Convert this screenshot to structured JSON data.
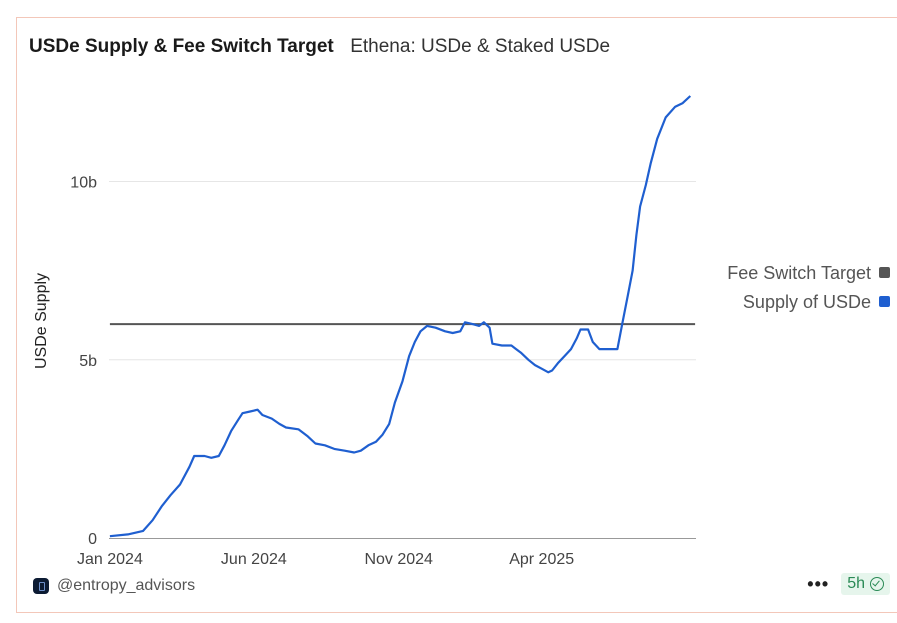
{
  "header": {
    "title": "USDe Supply & Fee Switch Target",
    "subtitle": "Ethena: USDe & Staked USDe"
  },
  "footer": {
    "handle": "@entropy_advisors",
    "more_label": "•••",
    "age_badge": "5h"
  },
  "chart_data": {
    "type": "line",
    "ylabel": "USDe Supply",
    "ylim": [
      0,
      12.4
    ],
    "yticks": [
      {
        "v": 0,
        "label": "0"
      },
      {
        "v": 5,
        "label": "5b"
      },
      {
        "v": 10,
        "label": "10b"
      }
    ],
    "xlim": [
      "2023-12-31",
      "2025-09-11"
    ],
    "xticks": [
      {
        "date": "2024-01-01",
        "label": "Jan 2024"
      },
      {
        "date": "2024-06-01",
        "label": "Jun 2024"
      },
      {
        "date": "2024-11-01",
        "label": "Nov 2024"
      },
      {
        "date": "2025-04-01",
        "label": "Apr 2025"
      }
    ],
    "grid": true,
    "legend_position": "right",
    "legend": [
      {
        "name": "Fee Switch Target",
        "color": "#555555"
      },
      {
        "name": "Supply of USDe",
        "color": "#1f5fd0"
      }
    ],
    "series": [
      {
        "name": "Fee Switch Target",
        "color": "#555555",
        "points": [
          [
            "2024-01-01",
            6.0
          ],
          [
            "2025-09-10",
            6.0
          ]
        ]
      },
      {
        "name": "Supply of USDe",
        "color": "#1f5fd0",
        "points": [
          [
            "2024-01-01",
            0.05
          ],
          [
            "2024-01-20",
            0.1
          ],
          [
            "2024-02-05",
            0.2
          ],
          [
            "2024-02-15",
            0.5
          ],
          [
            "2024-02-25",
            0.9
          ],
          [
            "2024-03-05",
            1.2
          ],
          [
            "2024-03-15",
            1.5
          ],
          [
            "2024-03-25",
            2.0
          ],
          [
            "2024-03-30",
            2.3
          ],
          [
            "2024-04-10",
            2.3
          ],
          [
            "2024-04-17",
            2.25
          ],
          [
            "2024-04-25",
            2.3
          ],
          [
            "2024-05-01",
            2.6
          ],
          [
            "2024-05-08",
            3.0
          ],
          [
            "2024-05-15",
            3.3
          ],
          [
            "2024-05-20",
            3.5
          ],
          [
            "2024-05-28",
            3.55
          ],
          [
            "2024-06-05",
            3.6
          ],
          [
            "2024-06-10",
            3.45
          ],
          [
            "2024-06-20",
            3.35
          ],
          [
            "2024-06-28",
            3.2
          ],
          [
            "2024-07-05",
            3.1
          ],
          [
            "2024-07-18",
            3.05
          ],
          [
            "2024-07-28",
            2.85
          ],
          [
            "2024-08-05",
            2.65
          ],
          [
            "2024-08-15",
            2.6
          ],
          [
            "2024-08-25",
            2.5
          ],
          [
            "2024-09-05",
            2.45
          ],
          [
            "2024-09-15",
            2.4
          ],
          [
            "2024-09-22",
            2.45
          ],
          [
            "2024-09-30",
            2.6
          ],
          [
            "2024-10-08",
            2.7
          ],
          [
            "2024-10-15",
            2.9
          ],
          [
            "2024-10-22",
            3.2
          ],
          [
            "2024-10-28",
            3.8
          ],
          [
            "2024-11-05",
            4.4
          ],
          [
            "2024-11-12",
            5.1
          ],
          [
            "2024-11-18",
            5.5
          ],
          [
            "2024-11-24",
            5.8
          ],
          [
            "2024-12-01",
            5.95
          ],
          [
            "2024-12-10",
            5.9
          ],
          [
            "2024-12-20",
            5.8
          ],
          [
            "2024-12-28",
            5.75
          ],
          [
            "2025-01-05",
            5.8
          ],
          [
            "2025-01-10",
            6.05
          ],
          [
            "2025-01-18",
            6.0
          ],
          [
            "2025-01-25",
            5.95
          ],
          [
            "2025-01-30",
            6.05
          ],
          [
            "2025-02-05",
            5.9
          ],
          [
            "2025-02-08",
            5.45
          ],
          [
            "2025-02-18",
            5.4
          ],
          [
            "2025-02-28",
            5.4
          ],
          [
            "2025-03-05",
            5.3
          ],
          [
            "2025-03-10",
            5.2
          ],
          [
            "2025-03-18",
            5.0
          ],
          [
            "2025-03-25",
            4.85
          ],
          [
            "2025-04-01",
            4.75
          ],
          [
            "2025-04-08",
            4.65
          ],
          [
            "2025-04-12",
            4.7
          ],
          [
            "2025-04-18",
            4.9
          ],
          [
            "2025-04-25",
            5.1
          ],
          [
            "2025-05-02",
            5.3
          ],
          [
            "2025-05-08",
            5.6
          ],
          [
            "2025-05-12",
            5.85
          ],
          [
            "2025-05-20",
            5.85
          ],
          [
            "2025-05-25",
            5.5
          ],
          [
            "2025-06-01",
            5.3
          ],
          [
            "2025-06-10",
            5.3
          ],
          [
            "2025-06-20",
            5.3
          ],
          [
            "2025-06-25",
            6.0
          ],
          [
            "2025-07-01",
            6.8
          ],
          [
            "2025-07-06",
            7.5
          ],
          [
            "2025-07-10",
            8.5
          ],
          [
            "2025-07-14",
            9.3
          ],
          [
            "2025-07-20",
            9.9
          ],
          [
            "2025-07-25",
            10.5
          ],
          [
            "2025-08-01",
            11.2
          ],
          [
            "2025-08-10",
            11.8
          ],
          [
            "2025-08-20",
            12.1
          ],
          [
            "2025-08-28",
            12.2
          ],
          [
            "2025-09-05",
            12.4
          ]
        ]
      }
    ]
  }
}
